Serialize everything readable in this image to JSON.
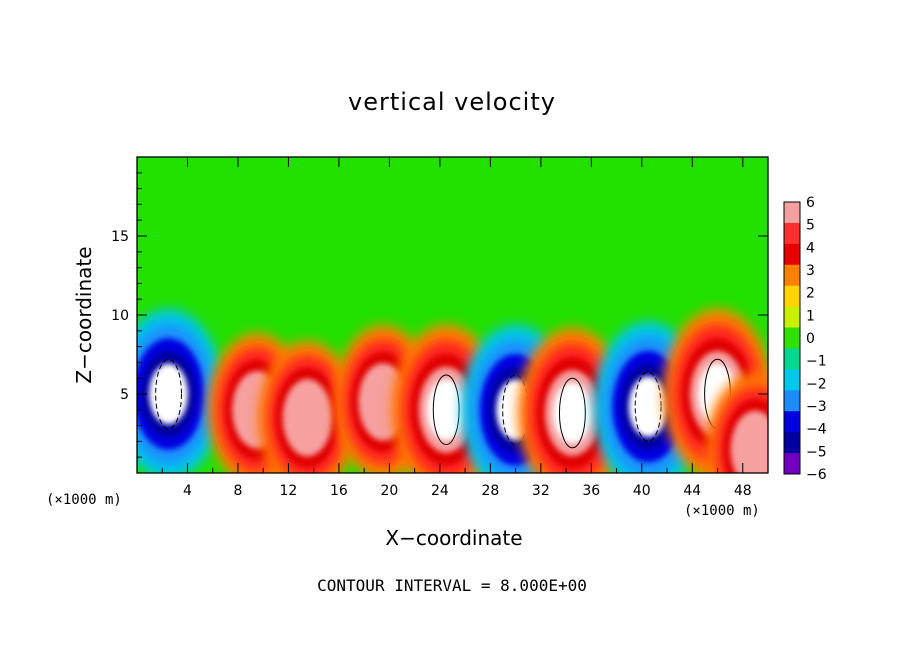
{
  "chart_data": {
    "type": "heatmap",
    "title": "vertical velocity",
    "xlabel": "X−coordinate",
    "ylabel": "Z−coordinate",
    "x_unit_label": "(×1000 m)",
    "footer": "CONTOUR INTERVAL = 8.000E+00",
    "xlim": [
      0,
      50
    ],
    "ylim": [
      0,
      20
    ],
    "x_ticks": [
      4,
      8,
      12,
      16,
      20,
      24,
      28,
      32,
      36,
      40,
      44,
      48
    ],
    "y_ticks": [
      5,
      10,
      15
    ],
    "colorbar_ticks": [
      "6",
      "5",
      "4",
      "3",
      "2",
      "1",
      "0",
      "−1",
      "−2",
      "−3",
      "−4",
      "−5",
      "−6"
    ],
    "colorbar_colors": [
      "#f2a0a0",
      "#ff3030",
      "#e80000",
      "#ff8000",
      "#ffd400",
      "#c8f000",
      "#30e000",
      "#00d890",
      "#00c8e8",
      "#1e8cff",
      "#0000e0",
      "#0000a0",
      "#7000c0"
    ],
    "background_color": "#22e000",
    "cells": [
      {
        "x": 2.5,
        "z": 5.0,
        "w": -8
      },
      {
        "x": 9.5,
        "z": 4.0,
        "w": 6
      },
      {
        "x": 13.5,
        "z": 3.5,
        "w": 6
      },
      {
        "x": 19.5,
        "z": 4.5,
        "w": 6
      },
      {
        "x": 24.5,
        "z": 4.0,
        "w": 8
      },
      {
        "x": 30.0,
        "z": 4.0,
        "w": -8
      },
      {
        "x": 34.5,
        "z": 3.8,
        "w": 8
      },
      {
        "x": 40.5,
        "z": 4.2,
        "w": -8
      },
      {
        "x": 46.0,
        "z": 5.0,
        "w": 8
      },
      {
        "x": 49.0,
        "z": 1.5,
        "w": 6
      }
    ]
  }
}
